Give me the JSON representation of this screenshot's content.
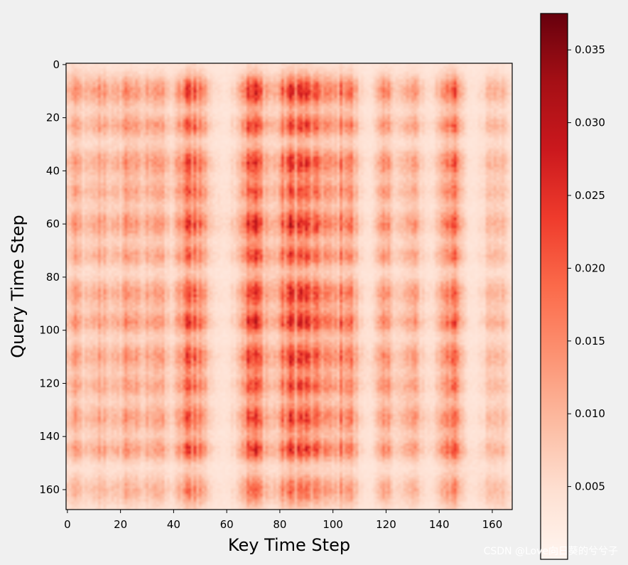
{
  "chart_data": {
    "type": "heatmap",
    "xlabel": "Key Time Step",
    "ylabel": "Query Time Step",
    "n": 168,
    "x_range": [
      0,
      167
    ],
    "y_range": [
      0,
      167
    ],
    "x_ticks": [
      0,
      20,
      40,
      60,
      80,
      100,
      120,
      140,
      160
    ],
    "y_ticks": [
      0,
      20,
      40,
      60,
      80,
      100,
      120,
      140,
      160
    ],
    "y_axis_inverted": true,
    "colormap": "Reds",
    "colorbar": {
      "range": [
        0.0,
        0.0375
      ],
      "ticks": [
        0.005,
        0.01,
        0.015,
        0.02,
        0.025,
        0.03,
        0.035
      ],
      "tick_labels": [
        "0.005",
        "0.010",
        "0.015",
        "0.020",
        "0.025",
        "0.030",
        "0.035"
      ]
    },
    "key_bands": [
      {
        "center": 3,
        "width": 3,
        "weight": 0.4
      },
      {
        "center": 13,
        "width": 3,
        "weight": 0.45
      },
      {
        "center": 23,
        "width": 3,
        "weight": 0.55
      },
      {
        "center": 33,
        "width": 3,
        "weight": 0.55
      },
      {
        "center": 47,
        "width": 4,
        "weight": 0.9
      },
      {
        "center": 70,
        "width": 4,
        "weight": 0.95
      },
      {
        "center": 83,
        "width": 3,
        "weight": 0.75
      },
      {
        "center": 89,
        "width": 3,
        "weight": 0.8
      },
      {
        "center": 96,
        "width": 3,
        "weight": 0.6
      },
      {
        "center": 105,
        "width": 3,
        "weight": 0.75
      },
      {
        "center": 120,
        "width": 3,
        "weight": 0.45
      },
      {
        "center": 130,
        "width": 3,
        "weight": 0.4
      },
      {
        "center": 144,
        "width": 3,
        "weight": 0.85
      },
      {
        "center": 161,
        "width": 3,
        "weight": 0.45
      }
    ],
    "query_bands": [
      {
        "center": 10,
        "width": 4,
        "weight": 0.9
      },
      {
        "center": 23,
        "width": 3,
        "weight": 0.8
      },
      {
        "center": 37,
        "width": 4,
        "weight": 0.85
      },
      {
        "center": 48,
        "width": 3,
        "weight": 0.7
      },
      {
        "center": 60,
        "width": 4,
        "weight": 0.9
      },
      {
        "center": 72,
        "width": 3,
        "weight": 0.75
      },
      {
        "center": 86,
        "width": 4,
        "weight": 0.85
      },
      {
        "center": 97,
        "width": 3,
        "weight": 0.9
      },
      {
        "center": 110,
        "width": 4,
        "weight": 0.85
      },
      {
        "center": 121,
        "width": 3,
        "weight": 0.75
      },
      {
        "center": 133,
        "width": 4,
        "weight": 0.8
      },
      {
        "center": 145,
        "width": 3,
        "weight": 0.85
      },
      {
        "center": 160,
        "width": 4,
        "weight": 0.6
      }
    ]
  },
  "watermark": "CSDN @Love向日葵的兮兮子"
}
